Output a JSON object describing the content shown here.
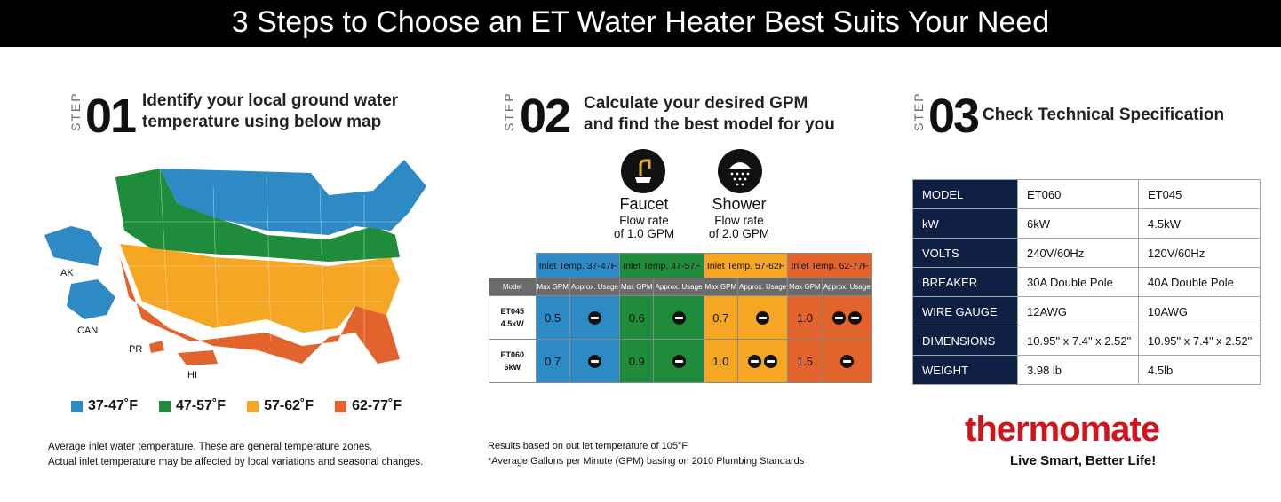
{
  "banner": {
    "title": "3 Steps to Choose an ET Water Heater Best Suits Your Need"
  },
  "step1": {
    "word": "STEP",
    "num": "01",
    "heading_line1": "Identify your local ground water",
    "heading_line2": "temperature using below map",
    "map_labels": {
      "ak": "AK",
      "can": "CAN",
      "pr": "PR",
      "hi": "HI"
    },
    "legend": [
      {
        "label": "37-47˚F",
        "color": "#2d8ac4"
      },
      {
        "label": "47-57˚F",
        "color": "#1e8c3a"
      },
      {
        "label": "57-62˚F",
        "color": "#f5a623"
      },
      {
        "label": "62-77˚F",
        "color": "#e3632d"
      }
    ],
    "note_line1": "Average inlet water temperature. These are general  temperature zones.",
    "note_line2": "Actual inlet temperature may be affected by local variations and seasonal changes."
  },
  "step2": {
    "word": "STEP",
    "num": "02",
    "heading_line1": "Calculate your desired GPM",
    "heading_line2": "and find the best model for you",
    "faucet": {
      "title": "Faucet",
      "line1": "Flow rate",
      "line2": "of 1.0 GPM",
      "icon": "faucet-icon"
    },
    "shower": {
      "title": "Shower",
      "line1": "Flow rate",
      "line2": "of 2.0 GPM",
      "icon": "shower-icon"
    },
    "table": {
      "model_header": "Model",
      "zones": [
        {
          "label": "Inlet Temp. 37-47F",
          "color": "#2d8ac4"
        },
        {
          "label": "Inlet Temp. 47-57F",
          "color": "#1e8c3a"
        },
        {
          "label": "Inlet Temp. 57-62F",
          "color": "#f5a623"
        },
        {
          "label": "Inlet Temp. 62-77F",
          "color": "#e3632d"
        }
      ],
      "sub_max": "Max GPM",
      "sub_usage": "Approx. Usage",
      "rows": [
        {
          "model": "ET045",
          "kw": "4.5kW",
          "gpm": [
            "0.5",
            "0.6",
            "0.7",
            "1.0"
          ]
        },
        {
          "model": "ET060",
          "kw": "6kW",
          "gpm": [
            "0.7",
            "0.9",
            "1.0",
            "1.5"
          ]
        }
      ]
    },
    "note_line1": "Results based on out let temperature of 105°F",
    "note_line2": "*Average Gallons per Minute (GPM) basing on 2010 Plumbing Standards"
  },
  "step3": {
    "word": "STEP",
    "num": "03",
    "heading": "Check Technical Specification",
    "spec": [
      [
        "MODEL",
        "ET060",
        "ET045"
      ],
      [
        "kW",
        "6kW",
        "4.5kW"
      ],
      [
        "VOLTS",
        "240V/60Hz",
        "120V/60Hz"
      ],
      [
        "BREAKER",
        "30A Double Pole",
        "40A Double Pole"
      ],
      [
        "WIRE GAUGE",
        "12AWG",
        "10AWG"
      ],
      [
        "DIMENSIONS",
        "10.95\" x 7.4\" x 2.52\"",
        "10.95\" x 7.4\" x 2.52\""
      ],
      [
        "WEIGHT",
        "3.98 lb",
        "4.5lb"
      ]
    ],
    "logo_text_a": "thermo",
    "logo_text_b": "mate",
    "tagline": "Live Smart, Better Life!",
    "brand_color": "#d0161c"
  }
}
